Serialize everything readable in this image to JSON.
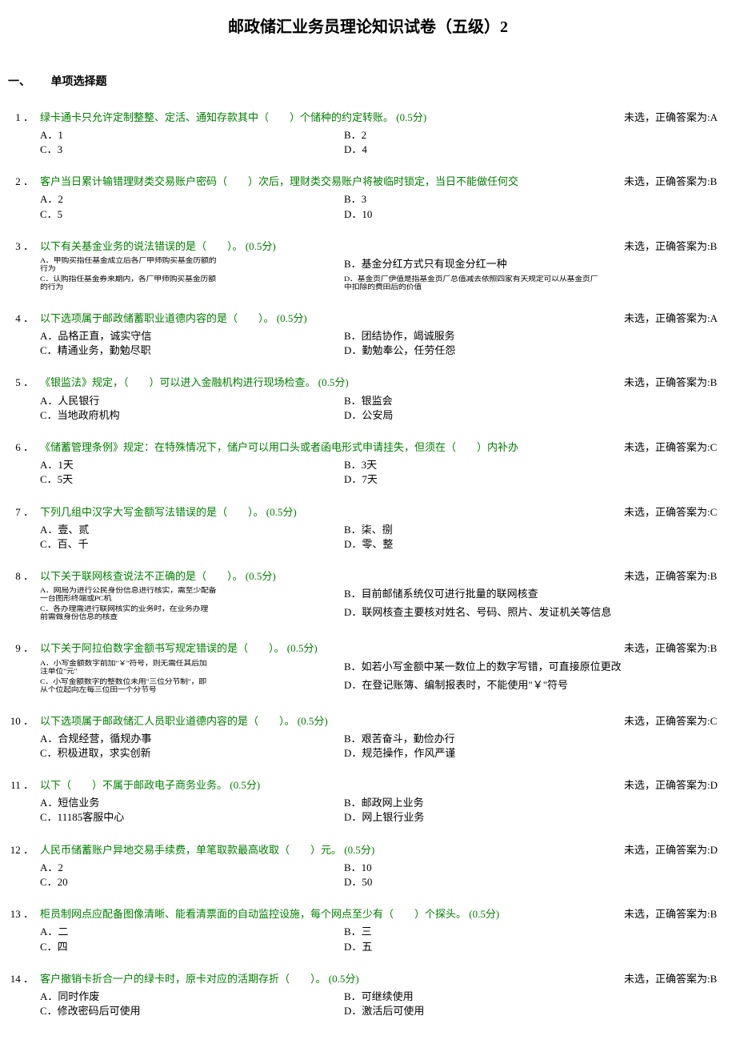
{
  "title": "邮政储汇业务员理论知识试卷（五级）2",
  "section": {
    "num": "一、",
    "name": "单项选择题"
  },
  "answer_prefix": "未选，正确答案为:",
  "questions": [
    {
      "num": "1 ．",
      "text": "绿卡通卡只允许定制整整、定活、通知存款其中（　　）个储种的约定转账。 (0.5分)",
      "answer": "A",
      "options": [
        {
          "label": "A．1",
          "label2": "B．2"
        },
        {
          "label": "C．3",
          "label2": "D．4"
        }
      ]
    },
    {
      "num": "2 ．",
      "text": "客户当日累计输错理财类交易账户密码（　　）次后，理财类交易账户将被临时锁定，当日不能做任何交",
      "answer": "B",
      "options": [
        {
          "label": "A．2",
          "label2": "B．3"
        },
        {
          "label": "C．5",
          "label2": "D．10"
        }
      ]
    },
    {
      "num": "3 ．",
      "text": "以下有关基金业务的说法错误的是（　　）。 (0.5分)",
      "answer": "B",
      "special": true,
      "opts": [
        {
          "a": "A．甲购买指任基金成立后各厂甲师购买基金历额的<br>行为",
          "b": "B．基金分红方式只有现金分红一种",
          "a_small": true,
          "b_small": false
        },
        {
          "a": "C．认购指任基金券来期内，各厂甲师购买基金历额<br>的行为",
          "b": "D．基金页厂伊值是指基金页厂总值减去依照四家有天规定可以从基金页厂<br>中扣除的费田后的价值",
          "a_small": true,
          "b_small": true
        }
      ]
    },
    {
      "num": "4 ．",
      "text": "以下选项属于邮政储蓄职业道德内容的是（　　）。 (0.5分)",
      "answer": "A",
      "options": [
        {
          "label": "A．品格正直，诚实守信",
          "label2": "B．团结协作，竭诚服务"
        },
        {
          "label": "C．精通业务，勤勉尽职",
          "label2": "D．勤勉奉公，任劳任怨"
        }
      ]
    },
    {
      "num": "5 ．",
      "text": "《银监法》规定，（　　）可以进入金融机构进行现场检查。 (0.5分)",
      "answer": "B",
      "options": [
        {
          "label": "A．人民银行",
          "label2": "B．银监会"
        },
        {
          "label": "C．当地政府机构",
          "label2": "D．公安局"
        }
      ]
    },
    {
      "num": "6 ．",
      "text": "《储蓄管理条例》规定：在特殊情况下，储户可以用口头或者函电形式申请挂失，但须在（　　）内补办",
      "answer": "C",
      "options": [
        {
          "label": "A．1天",
          "label2": "B．3天"
        },
        {
          "label": "C．5天",
          "label2": "D．7天"
        }
      ]
    },
    {
      "num": "7 ．",
      "text": "下列几组中汉字大写金额写法错误的是（　　）。 (0.5分)",
      "answer": "C",
      "options": [
        {
          "label": "A．壹、贰",
          "label2": "B．柒、捌"
        },
        {
          "label": "C．百、千",
          "label2": "D．零、整"
        }
      ]
    },
    {
      "num": "8 ．",
      "text": "以下关于联网核查说法不正确的是（　　）。 (0.5分)",
      "answer": "B",
      "special": true,
      "opts": [
        {
          "a": "A．网局为进行公民身份信息进行核实，需至少配备<br>一台图形终端或PC机",
          "b": "B．目前邮储系统仅可进行批量的联网核查",
          "a_small": true,
          "b_small": false
        },
        {
          "a": "C．各办理需进行联网核实的业务时，在业务办理<br>前需做身份信息的核查",
          "b": "D．联网核查主要核对姓名、号码、照片、发证机关等信息",
          "a_small": true,
          "b_small": false
        }
      ]
    },
    {
      "num": "9 ．",
      "text": "以下关于阿拉伯数字金额书写规定错误的是（　　）。 (0.5分)",
      "answer": "B",
      "special": true,
      "opts": [
        {
          "a": "A．小写金额数字前加\"￥\"符号，则无需任其后加<br>注单位\"元\"",
          "b": "B．如若小写金额中某一数位上的数字写错，可直接原位更改",
          "a_small": true,
          "b_small": false
        },
        {
          "a": "C．小写金额数字的整数位未用\"三位分节制\"，即<br>从个位起向左每三位田一个分节号",
          "b": "D．在登记账簿、编制报表时，不能使用\"￥\"符号",
          "a_small": true,
          "b_small": false
        }
      ]
    },
    {
      "num": "10 ．",
      "text": "以下选项属于邮政储汇人员职业道德内容的是（　　）。 (0.5分)",
      "answer": "C",
      "options": [
        {
          "label": "A．合规经营，循规办事",
          "label2": "B．艰苦奋斗，勤俭办行"
        },
        {
          "label": "C．积极进取，求实创新",
          "label2": "D．规范操作，作风严谨"
        }
      ]
    },
    {
      "num": "11 ．",
      "text": "以下（　　）不属于邮政电子商务业务。 (0.5分)",
      "answer": "D",
      "options": [
        {
          "label": "A．短信业务",
          "label2": "B．邮政网上业务"
        },
        {
          "label": "C．11185客服中心",
          "label2": "D．网上银行业务"
        }
      ]
    },
    {
      "num": "12 ．",
      "text": "人民币储蓄账户异地交易手续费，单笔取款最高收取（　　）元。 (0.5分)",
      "answer": "D",
      "options": [
        {
          "label": "A．2",
          "label2": "B．10"
        },
        {
          "label": "C．20",
          "label2": "D．50"
        }
      ]
    },
    {
      "num": "13 ．",
      "text": "柜员制网点应配备图像清晰、能看清票面的自动监控设施，每个网点至少有（　　）个探头。 (0.5分)",
      "answer": "B",
      "options": [
        {
          "label": "A．二",
          "label2": "B．三"
        },
        {
          "label": "C．四",
          "label2": "D．五"
        }
      ]
    },
    {
      "num": "14 ．",
      "text": "客户撤销卡折合一户的绿卡时，原卡对应的活期存折（　　）。 (0.5分)",
      "answer": "B",
      "options": [
        {
          "label": "A．同时作废",
          "label2": "B．可继续使用"
        },
        {
          "label": "C．修改密码后可使用",
          "label2": "D．激活后可使用"
        }
      ]
    }
  ]
}
